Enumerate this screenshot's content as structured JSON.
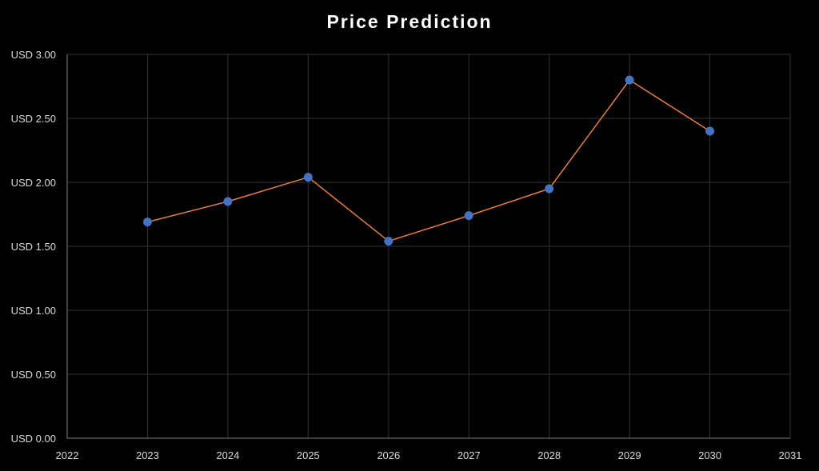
{
  "chart_data": {
    "type": "line",
    "title": "Price Prediction",
    "x": [
      2023,
      2024,
      2025,
      2026,
      2027,
      2028,
      2029,
      2030
    ],
    "series": [
      {
        "values": [
          1.69,
          1.85,
          2.04,
          1.54,
          1.74,
          1.95,
          2.8,
          2.4
        ]
      }
    ],
    "xlim": [
      2022,
      2031
    ],
    "ylim": [
      0,
      3
    ],
    "x_ticks": [
      "2022",
      "2023",
      "2024",
      "2025",
      "2026",
      "2027",
      "2028",
      "2029",
      "2030",
      "2031"
    ],
    "y_ticks": [
      "USD 0.00",
      "USD 0.50",
      "USD 1.00",
      "USD 1.50",
      "USD 2.00",
      "USD 2.50",
      "USD 3.00"
    ],
    "y_tick_values": [
      0,
      0.5,
      1,
      1.5,
      2,
      2.5,
      3
    ],
    "grid": true,
    "legend": "none",
    "colors": {
      "background": "#000000",
      "line": "#ed7d31",
      "marker": "#4472c4",
      "grid": "#333333",
      "axis": "#7f7f7f",
      "text": "#d9d9d9",
      "title": "#ffffff"
    }
  }
}
